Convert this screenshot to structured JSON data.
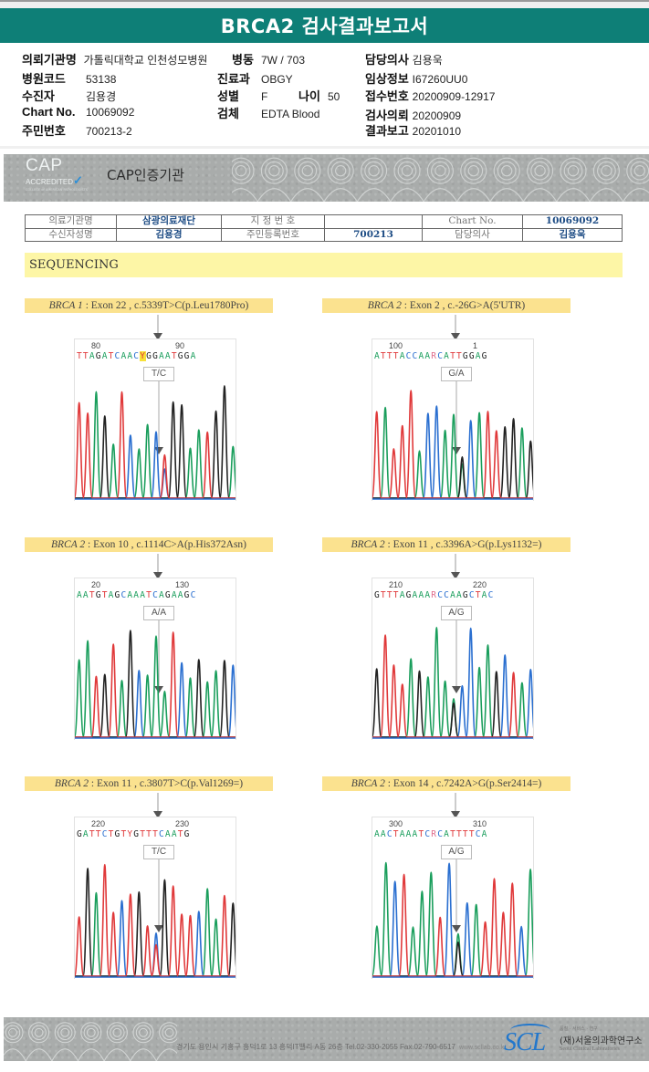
{
  "title": "BRCA2 검사결과보고서",
  "header": {
    "col1": [
      {
        "label": "의뢰기관명",
        "value": "가톨릭대학교 인천성모병원"
      },
      {
        "label": "병원코드",
        "value": "53138"
      },
      {
        "label": "수진자",
        "value": "김용경"
      },
      {
        "label": "Chart No.",
        "value": "10069092"
      },
      {
        "label": "주민번호",
        "value": "700213-2"
      }
    ],
    "col2": [
      {
        "label": "병동",
        "value": "7W / 703"
      },
      {
        "label": "진료과",
        "value": "OBGY"
      },
      {
        "label": "성별",
        "value": "F"
      },
      {
        "label": "검체",
        "value": "EDTA Blood"
      }
    ],
    "age": {
      "label": "나이",
      "value": "50"
    },
    "col3": [
      {
        "label": "담당의사",
        "value": "김용욱"
      },
      {
        "label": "임상정보",
        "value": "I67260UU0"
      },
      {
        "label": "접수번호",
        "value": "20200909-12917"
      },
      {
        "label": "검사의뢰",
        "value": "20200909"
      },
      {
        "label": "결과보고",
        "value": "20201010"
      }
    ]
  },
  "cap": {
    "logo_big": "CAP",
    "logo_small": "ACCREDITED",
    "logo_tiny": "COLLEGE of AMERICAN PATHOLOGISTS",
    "title": "CAP인증기관"
  },
  "patient_table": {
    "row1": [
      "의료기관명",
      "삼광의료재단",
      "지 정 번 호",
      "",
      "Chart No.",
      "10069092"
    ],
    "row2": [
      "수신자성명",
      "김용경",
      "주민등록번호",
      "700213",
      "담당의사",
      "김용욱"
    ]
  },
  "section_title": "SEQUENCING",
  "variants": [
    {
      "gene": "BRCA 1",
      "desc": " : Exon 22 , c.5339T>C(p.Leu1780Pro)",
      "sequence": "TTAGATCAACYGGAATGGA",
      "pos_labels": [
        "80",
        "90"
      ],
      "genotype": "T/C",
      "highlight_index": 10
    },
    {
      "gene": "BRCA 2",
      "desc": " : Exon 2 , c.-26G>A(5'UTR)",
      "sequence": "ATTTACCAARCATTGGAG",
      "pos_labels": [
        "100",
        "1"
      ],
      "genotype": "G/A",
      "highlight_index": -1
    },
    {
      "gene": "BRCA 2",
      "desc": " : Exon 10 , c.1114C>A(p.His372Asn)",
      "sequence": "AATGTAGCAAATCAGAAGC",
      "pos_labels": [
        "20",
        "130"
      ],
      "genotype": "A/A",
      "highlight_index": -1
    },
    {
      "gene": "BRCA 2",
      "desc": " : Exon 11 , c.3396A>G(p.Lys1132=)",
      "sequence": "GTTTAGAAARCCAAGCTAC",
      "pos_labels": [
        "210",
        "220"
      ],
      "genotype": "A/G",
      "highlight_index": -1
    },
    {
      "gene": "BRCA 2",
      "desc": " : Exon 11 , c.3807T>C(p.Val1269=)",
      "sequence": "GATTCTGTYGTTTCAATG",
      "pos_labels": [
        "220",
        "230"
      ],
      "genotype": "T/C",
      "highlight_index": -1
    },
    {
      "gene": "BRCA 2",
      "desc": " : Exon 14 , c.7242A>G(p.Ser2414=)",
      "sequence": "AACTAAATCRCATTTTCA",
      "pos_labels": [
        "300",
        "310"
      ],
      "genotype": "A/G",
      "highlight_index": -1
    }
  ],
  "base_colors": {
    "A": "#1a9e5c",
    "C": "#2a6fd0",
    "G": "#222222",
    "T": "#e0393a",
    "Y": "#e0393a",
    "R": "#e06a8a"
  },
  "footer": {
    "address": "경기도 용인시 기흥구 흥덕1로 13 흥덕IT밸리 A동 26층  Tel.02-330-2055  Fax.02-790-6517",
    "url": "www.scllab.co.kr",
    "logo": "SCL",
    "slogan": "품질 · 서비스 · 연구",
    "name_kr": "(재)서울의과학연구소",
    "name_en": "Seoul Clinical Laboratories"
  }
}
